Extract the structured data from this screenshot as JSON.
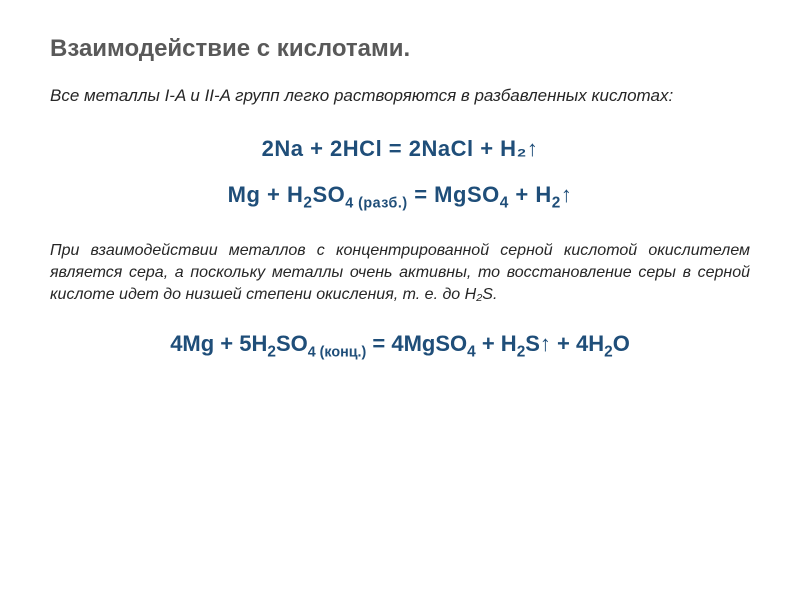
{
  "title": "Взаимодействие с кислотами.",
  "intro": "Все металлы I-A и II-A групп легко растворяются в разбавленных кислотах:",
  "equation1": "2Na + 2HCl = 2NaCl + H₂↑",
  "equation2_pre": "Mg + H",
  "equation2_sub1": "2",
  "equation2_mid1": "SO",
  "equation2_sub2": "4 (разб.)",
  "equation2_mid2": " = MgSO",
  "equation2_sub3": "4",
  "equation2_mid3": " + H",
  "equation2_sub4": "2",
  "equation2_end": "↑",
  "body": "При взаимодействии металлов с концентрированной серной кислотой окислителем является сера, а поскольку металлы очень активны, то восстановление серы в серной кислоте идет до низшей степени окисления, т. е. до H₂S.",
  "equation3_pre": "4Mg + 5H",
  "equation3_sub1": "2",
  "equation3_mid1": "SO",
  "equation3_sub2": "4 (конц.)",
  "equation3_mid2": " = 4MgSO",
  "equation3_sub3": "4",
  "equation3_mid3": " + H",
  "equation3_sub4": "2",
  "equation3_mid4": "S↑ + 4H",
  "equation3_sub5": "2",
  "equation3_end": "O",
  "colors": {
    "title": "#595959",
    "equation": "#1f4e79",
    "text": "#262626",
    "background": "#ffffff"
  },
  "fonts": {
    "title_size": 24,
    "equation_size": 22,
    "body_size": 16,
    "intro_size": 17
  }
}
